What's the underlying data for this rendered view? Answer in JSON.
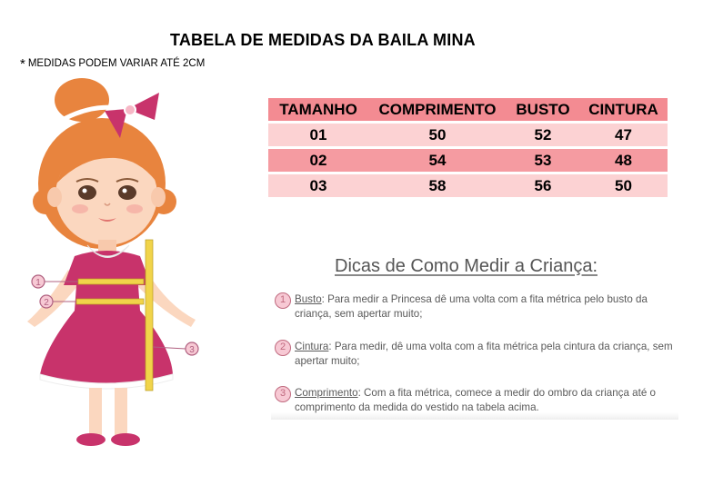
{
  "title": "TABELA DE MEDIDAS DA BAILA MINA",
  "note": {
    "star": "*",
    "text": "MEDIDAS PODEM VARIAR ATÉ 2CM"
  },
  "table": {
    "headers": [
      "TAMANHO",
      "COMPRIMENTO",
      "BUSTO",
      "CINTURA"
    ],
    "rows": [
      [
        "01",
        "50",
        "52",
        "47"
      ],
      [
        "02",
        "54",
        "53",
        "48"
      ],
      [
        "03",
        "58",
        "56",
        "50"
      ]
    ],
    "header_color": "#f38b92",
    "row_light_color": "#fcd2d3",
    "row_dark_color": "#f59ba1"
  },
  "illustration": {
    "markers": [
      "1",
      "2",
      "3"
    ],
    "dress_color": "#c8336b",
    "tape_color": "#f1d44a",
    "bow_color": "#c8336b",
    "hair_color": "#e8843e"
  },
  "tips": {
    "title": "Dicas de Como Medir a Criança:",
    "items": [
      {
        "num": "1",
        "term": "Busto",
        "text": ": Para medir a Princesa dê uma volta com a fita métrica pelo busto da criança, sem apertar muito;"
      },
      {
        "num": "2",
        "term": "Cintura",
        "text": ": Para medir, dê uma volta com a fita métrica pela cintura da criança, sem apertar muito;"
      },
      {
        "num": "3",
        "term": "Comprimento",
        "text": ": Com a fita métrica, comece a medir do ombro da criança até o comprimento da medida do vestido na tabela acima."
      }
    ]
  }
}
